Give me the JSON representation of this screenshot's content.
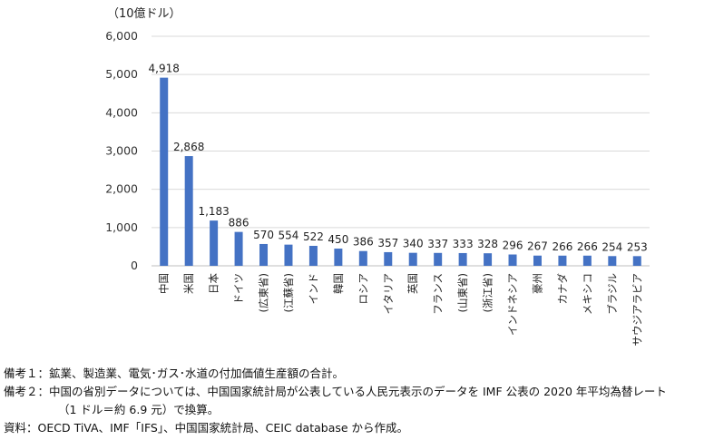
{
  "chart_data": {
    "type": "bar",
    "unit_label": "（10億ドル）",
    "ylim": [
      0,
      6000
    ],
    "yticks": [
      "0",
      "1,000",
      "2,000",
      "3,000",
      "4,000",
      "5,000",
      "6,000"
    ],
    "ytick_values": [
      0,
      1000,
      2000,
      3000,
      4000,
      5000,
      6000
    ],
    "categories": [
      "中国",
      "米国",
      "日本",
      "ドイツ",
      "(広東省)",
      "(江蘇省)",
      "インド",
      "韓国",
      "ロシア",
      "イタリア",
      "英国",
      "フランス",
      "(山東省)",
      "(浙江省)",
      "インドネシア",
      "豪州",
      "カナダ",
      "メキシコ",
      "ブラジル",
      "サウジアラビア"
    ],
    "values": [
      4918,
      2868,
      1183,
      886,
      570,
      554,
      522,
      450,
      386,
      357,
      340,
      337,
      333,
      328,
      296,
      267,
      266,
      266,
      254,
      253
    ],
    "value_labels": [
      "4,918",
      "2,868",
      "1,183",
      "886",
      "570",
      "554",
      "522",
      "450",
      "386",
      "357",
      "340",
      "337",
      "333",
      "328",
      "296",
      "267",
      "266",
      "266",
      "254",
      "253"
    ],
    "bar_color": "#4472C4",
    "grid": true
  },
  "notes": {
    "note1": "備考１：鉱業、製造業、電気･ガス･水道の付加価値生産額の合計。",
    "note2": "備考２：中国の省別データについては、中国国家統計局が公表している人民元表示のデータを IMF 公表の 2020 年平均為替レート",
    "note2_cont": "（1 ドル＝約 6.9 元）で換算。",
    "source": "資料：OECD TiVA、IMF「IFS」、中国国家統計局、CEIC database から作成。"
  }
}
